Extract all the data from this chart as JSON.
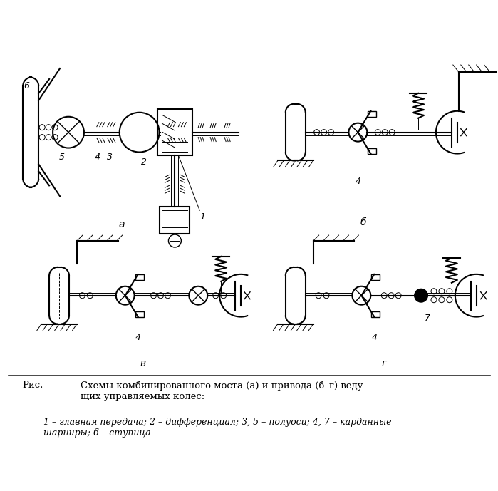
{
  "bg_color": "#ffffff",
  "line_color": "#000000",
  "fig_width": 6.99,
  "fig_height": 6.89,
  "caption_rus": "Рис.",
  "caption_main": "Схемы комбинированного моста (а) и привода (б–г) веду-\nщих управляемых колес:",
  "caption_legend": "1 – главная передача; 2 – дифференциал; 3, 5 – полуоси; 4, 7 – карданные\nшарниры; 6 – ступица",
  "label_a": "а",
  "label_b": "б",
  "label_v": "в",
  "label_g": "г"
}
